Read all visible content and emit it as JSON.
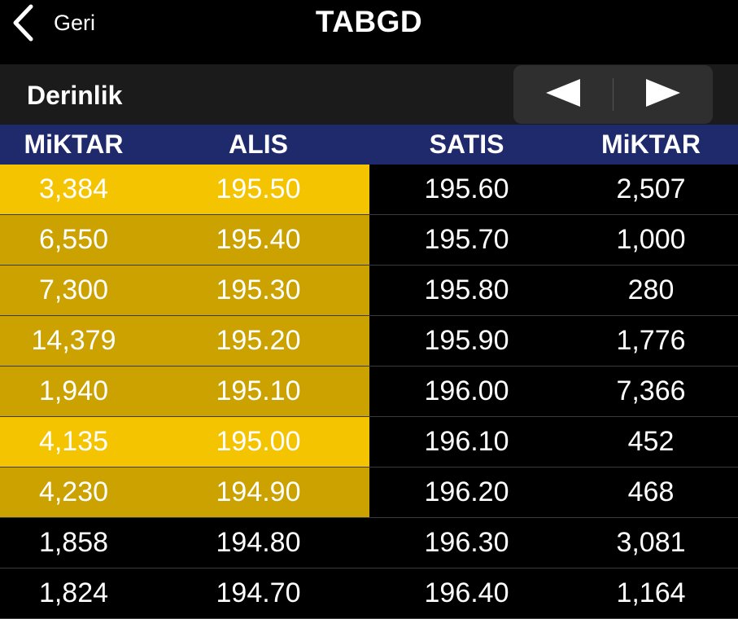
{
  "nav": {
    "back_label": "Geri",
    "title": "TABGD"
  },
  "toolbar": {
    "section_title": "Derinlik"
  },
  "table": {
    "headers": [
      "MiKTAR",
      "ALIS",
      "SATIS",
      "MiKTAR"
    ],
    "rows": [
      {
        "bid_qty": "3,384",
        "bid": "195.50",
        "ask": "195.60",
        "ask_qty": "2,507",
        "highlight": "bright"
      },
      {
        "bid_qty": "6,550",
        "bid": "195.40",
        "ask": "195.70",
        "ask_qty": "1,000",
        "highlight": "dark"
      },
      {
        "bid_qty": "7,300",
        "bid": "195.30",
        "ask": "195.80",
        "ask_qty": "280",
        "highlight": "dark"
      },
      {
        "bid_qty": "14,379",
        "bid": "195.20",
        "ask": "195.90",
        "ask_qty": "1,776",
        "highlight": "dark"
      },
      {
        "bid_qty": "1,940",
        "bid": "195.10",
        "ask": "196.00",
        "ask_qty": "7,366",
        "highlight": "dark"
      },
      {
        "bid_qty": "4,135",
        "bid": "195.00",
        "ask": "196.10",
        "ask_qty": "452",
        "highlight": "bright"
      },
      {
        "bid_qty": "4,230",
        "bid": "194.90",
        "ask": "196.20",
        "ask_qty": "468",
        "highlight": "dark"
      },
      {
        "bid_qty": "1,858",
        "bid": "194.80",
        "ask": "196.30",
        "ask_qty": "3,081",
        "highlight": "none"
      },
      {
        "bid_qty": "1,824",
        "bid": "194.70",
        "ask": "196.40",
        "ask_qty": "1,164",
        "highlight": "none"
      }
    ]
  },
  "colors": {
    "header_bg": "#1e2a6b",
    "highlight_bright": "#f5c400",
    "highlight_dark": "#cba200"
  },
  "icons": {
    "back": "chevron-left-icon",
    "prev": "triangle-left-icon",
    "next": "triangle-right-icon"
  }
}
